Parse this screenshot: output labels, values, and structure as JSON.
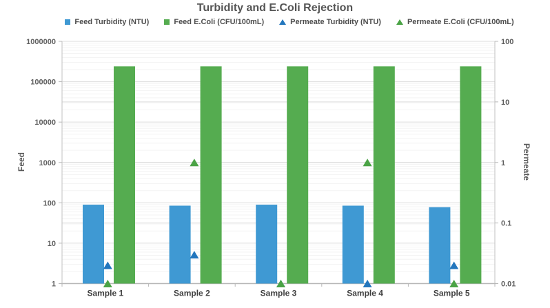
{
  "title": "Turbidity and E.Coli Rejection",
  "legend": {
    "items": [
      {
        "id": "feed-turbidity",
        "label": "Feed Turbidity (NTU)",
        "marker": "square",
        "color": "#3f99d3"
      },
      {
        "id": "feed-ecoli",
        "label": "Feed E.Coli (CFU/100mL)",
        "marker": "square",
        "color": "#55ac50"
      },
      {
        "id": "permeate-turbidity",
        "label": "Permeate Turbidity (NTU)",
        "marker": "triangle",
        "color": "#2276bd"
      },
      {
        "id": "permeate-ecoli",
        "label": "Permeate E.Coli (CFU/100mL)",
        "marker": "triangle",
        "color": "#4aa345"
      }
    ]
  },
  "chart_data": {
    "type": "mixed-column-scatter",
    "categories": [
      "Sample 1",
      "Sample 2",
      "Sample 3",
      "Sample 4",
      "Sample 5"
    ],
    "series": [
      {
        "id": "feed-turbidity",
        "name": "Feed Turbidity (NTU)",
        "type": "column",
        "axis": "left",
        "color": "#3f99d3",
        "values": [
          90,
          85,
          90,
          85,
          78
        ]
      },
      {
        "id": "feed-ecoli",
        "name": "Feed E.Coli (CFU/100mL)",
        "type": "column",
        "axis": "left",
        "color": "#55ac50",
        "values": [
          240000,
          240000,
          240000,
          240000,
          240000
        ]
      },
      {
        "id": "permeate-turbidity",
        "name": "Permeate Turbidity (NTU)",
        "type": "scatter",
        "axis": "right",
        "color": "#2276bd",
        "values": [
          0.02,
          0.03,
          0.01,
          0.01,
          0.02
        ]
      },
      {
        "id": "permeate-ecoli",
        "name": "Permeate E.Coli (CFU/100mL)",
        "type": "scatter",
        "axis": "right",
        "color": "#4aa345",
        "values": [
          0.01,
          1,
          0.01,
          1,
          0.01
        ]
      }
    ],
    "left_axis": {
      "title": "Feed",
      "scale": "log",
      "min": 1,
      "max": 1000000,
      "ticks": [
        "1000000",
        "100000",
        "10000",
        "1000",
        "100",
        "10",
        "1"
      ]
    },
    "right_axis": {
      "title": "Permeate",
      "scale": "log",
      "min": 0.01,
      "max": 100,
      "ticks": [
        "100",
        "10",
        "1",
        "0.1",
        "0.01"
      ]
    },
    "grid": true,
    "legend_position": "top",
    "colors": {
      "major_grid": "#dcdcdc",
      "minor_grid": "#f3f3f3",
      "axis_line": "#c2c2c2",
      "tick_mark": "#b8b8b8",
      "tick_label": "#5f5f5f",
      "category_label": "#3f3f3f"
    }
  }
}
